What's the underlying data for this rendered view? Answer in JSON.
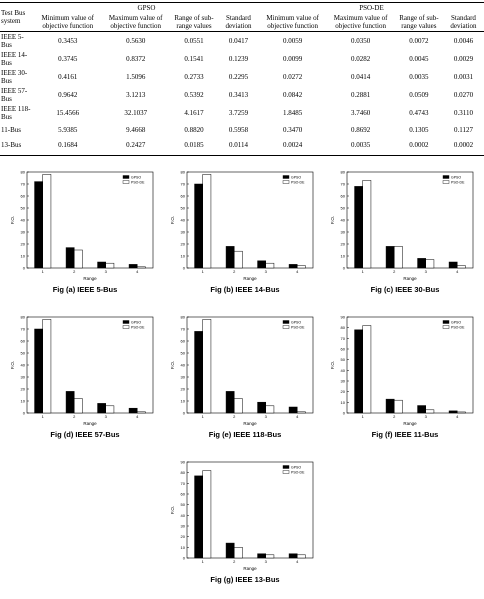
{
  "table": {
    "header": {
      "system": "Test Bus system",
      "groups": [
        "GPSO",
        "PSO-DE"
      ],
      "columns": [
        "Minimum value of objective function",
        "Maximum value of objective function",
        "Range of sub-range values",
        "Standard deviation",
        "Minimum value of objective function",
        "Maximum value of objective function",
        "Range of sub-range values",
        "Standard deviation"
      ]
    },
    "rows": [
      [
        "IEEE 5-Bus",
        "0.3453",
        "0.5630",
        "0.0551",
        "0.0417",
        "0.0059",
        "0.0350",
        "0.0072",
        "0.0046"
      ],
      [
        "IEEE 14-Bus",
        "0.3745",
        "0.8372",
        "0.1541",
        "0.1239",
        "0.0099",
        "0.0282",
        "0.0045",
        "0.0029"
      ],
      [
        "IEEE 30-Bus",
        "0.4161",
        "1.5096",
        "0.2733",
        "0.2295",
        "0.0272",
        "0.0414",
        "0.0035",
        "0.0031"
      ],
      [
        "IEEE 57-Bus",
        "0.9642",
        "3.1213",
        "0.5392",
        "0.3413",
        "0.0842",
        "0.2881",
        "0.0509",
        "0.0270"
      ],
      [
        "IEEE 118-Bus",
        "15.4566",
        "32.1037",
        "4.1617",
        "3.7259",
        "1.8485",
        "3.7460",
        "0.4743",
        "0.3110"
      ],
      [
        "11-Bus",
        "5.9385",
        "9.4668",
        "0.8820",
        "0.5958",
        "0.3470",
        "0.8692",
        "0.1305",
        "0.1127"
      ],
      [
        "13-Bus",
        "0.1684",
        "0.2427",
        "0.0185",
        "0.0114",
        "0.0024",
        "0.0035",
        "0.0002",
        "0.0002"
      ]
    ]
  },
  "chart_data": [
    {
      "type": "bar",
      "caption": "Fig (a) IEEE 5-Bus",
      "xlabel": "Range",
      "ylabel": "F.O.",
      "categories": [
        "1",
        "2",
        "3",
        "4"
      ],
      "series": [
        {
          "name": "GPSO",
          "color": "#000000",
          "values": [
            72,
            17,
            5,
            3
          ]
        },
        {
          "name": "PSO-DE",
          "color": "#ffffff",
          "values": [
            78,
            15,
            4,
            1
          ]
        }
      ],
      "ylim": [
        0,
        80
      ],
      "yticks": [
        0,
        10,
        20,
        30,
        40,
        50,
        60,
        70,
        80
      ]
    },
    {
      "type": "bar",
      "caption": "Fig (b) IEEE 14-Bus",
      "xlabel": "Range",
      "ylabel": "F.O.",
      "categories": [
        "1",
        "2",
        "3",
        "4"
      ],
      "series": [
        {
          "name": "GPSO",
          "color": "#000000",
          "values": [
            70,
            18,
            6,
            3
          ]
        },
        {
          "name": "PSO-DE",
          "color": "#ffffff",
          "values": [
            78,
            14,
            4,
            2
          ]
        }
      ],
      "ylim": [
        0,
        80
      ],
      "yticks": [
        0,
        10,
        20,
        30,
        40,
        50,
        60,
        70,
        80
      ]
    },
    {
      "type": "bar",
      "caption": "Fig (c) IEEE 30-Bus",
      "xlabel": "Range",
      "ylabel": "F.O.",
      "categories": [
        "1",
        "2",
        "3",
        "4"
      ],
      "series": [
        {
          "name": "GPSO",
          "color": "#000000",
          "values": [
            68,
            18,
            8,
            5
          ]
        },
        {
          "name": "PSO-DE",
          "color": "#ffffff",
          "values": [
            73,
            18,
            7,
            2
          ]
        }
      ],
      "ylim": [
        0,
        80
      ],
      "yticks": [
        0,
        10,
        20,
        30,
        40,
        50,
        60,
        70,
        80
      ]
    },
    {
      "type": "bar",
      "caption": "Fig (d) IEEE 57-Bus",
      "xlabel": "Range",
      "ylabel": "F.O.",
      "categories": [
        "1",
        "2",
        "3",
        "4"
      ],
      "series": [
        {
          "name": "GPSO",
          "color": "#000000",
          "values": [
            70,
            18,
            8,
            4
          ]
        },
        {
          "name": "PSO-DE",
          "color": "#ffffff",
          "values": [
            78,
            12,
            6,
            1
          ]
        }
      ],
      "ylim": [
        0,
        80
      ],
      "yticks": [
        0,
        10,
        20,
        30,
        40,
        50,
        60,
        70,
        80
      ]
    },
    {
      "type": "bar",
      "caption": "Fig (e) IEEE 118-Bus",
      "xlabel": "Range",
      "ylabel": "F.O.",
      "categories": [
        "1",
        "2",
        "3",
        "4"
      ],
      "series": [
        {
          "name": "GPSO",
          "color": "#000000",
          "values": [
            68,
            18,
            9,
            5
          ]
        },
        {
          "name": "PSO-DE",
          "color": "#ffffff",
          "values": [
            78,
            12,
            6,
            1
          ]
        }
      ],
      "ylim": [
        0,
        80
      ],
      "yticks": [
        0,
        10,
        20,
        30,
        40,
        50,
        60,
        70,
        80
      ]
    },
    {
      "type": "bar",
      "caption": "Fig (f) IEEE 11-Bus",
      "xlabel": "Range",
      "ylabel": "F.O.",
      "categories": [
        "1",
        "2",
        "3",
        "4"
      ],
      "series": [
        {
          "name": "GPSO",
          "color": "#000000",
          "values": [
            78,
            13,
            7,
            2
          ]
        },
        {
          "name": "PSO-DE",
          "color": "#ffffff",
          "values": [
            82,
            12,
            3,
            1
          ]
        }
      ],
      "ylim": [
        0,
        90
      ],
      "yticks": [
        0,
        10,
        20,
        30,
        40,
        50,
        60,
        70,
        80,
        90
      ]
    },
    {
      "type": "bar",
      "caption": "Fig (g) IEEE 13-Bus",
      "xlabel": "Range",
      "ylabel": "F.O.",
      "categories": [
        "1",
        "2",
        "3",
        "4"
      ],
      "series": [
        {
          "name": "GPSO",
          "color": "#000000",
          "values": [
            77,
            14,
            4,
            4
          ]
        },
        {
          "name": "PSO-DE",
          "color": "#ffffff",
          "values": [
            82,
            10,
            3,
            3
          ]
        }
      ],
      "ylim": [
        0,
        90
      ],
      "yticks": [
        0,
        10,
        20,
        30,
        40,
        50,
        60,
        70,
        80,
        90
      ]
    }
  ]
}
